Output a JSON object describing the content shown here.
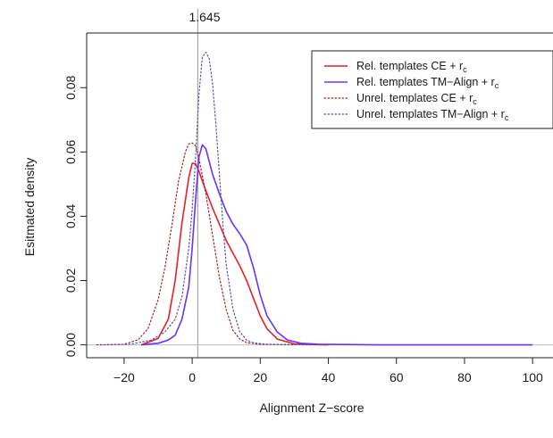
{
  "chart_data": {
    "type": "line",
    "title": "",
    "xlabel": "Alignment Z−score",
    "ylabel": "Esitmated density",
    "xlim": [
      -31,
      106
    ],
    "ylim": [
      -0.004,
      0.097
    ],
    "x_ticks": [
      -20,
      0,
      20,
      40,
      60,
      80,
      100
    ],
    "x_tick_labels": [
      "−20",
      "0",
      "20",
      "40",
      "60",
      "80",
      "100"
    ],
    "y_ticks": [
      0.0,
      0.02,
      0.04,
      0.06,
      0.08
    ],
    "y_tick_labels": [
      "0.00",
      "0.02",
      "0.04",
      "0.06",
      "0.08"
    ],
    "grid": false,
    "legend_position": "top-right",
    "vline": {
      "x": 1.645,
      "label": "1.645",
      "color": "#aaaaaa"
    },
    "hline": {
      "y": 0,
      "color": "#bbbbbb"
    },
    "series": [
      {
        "name": "Rel. templates CE + r",
        "name_sub": "c",
        "color": "#ee1c25",
        "dash": "solid",
        "x": [
          -15,
          -10,
          -7,
          -5,
          -3,
          -1,
          0,
          1,
          2,
          3,
          4,
          6,
          8,
          10,
          12,
          14,
          16,
          18,
          20,
          22,
          25,
          30,
          35,
          40
        ],
        "y": [
          0.0,
          0.002,
          0.008,
          0.02,
          0.038,
          0.052,
          0.0565,
          0.0563,
          0.054,
          0.051,
          0.048,
          0.0425,
          0.0375,
          0.0325,
          0.0285,
          0.0245,
          0.02,
          0.0145,
          0.009,
          0.005,
          0.0018,
          0.0003,
          0.0001,
          0.0
        ]
      },
      {
        "name": "Rel. templates TM−Align + r",
        "name_sub": "c",
        "color": "#6633ff",
        "dash": "solid",
        "x": [
          -15,
          -10,
          -7,
          -5,
          -3,
          -1,
          0,
          1,
          2,
          3,
          4,
          5,
          6,
          8,
          10,
          12,
          14,
          16,
          18,
          20,
          22,
          25,
          28,
          32,
          37,
          45,
          55,
          100
        ],
        "y": [
          0.0,
          0.0005,
          0.0015,
          0.003,
          0.008,
          0.018,
          0.03,
          0.045,
          0.0585,
          0.0622,
          0.061,
          0.057,
          0.053,
          0.047,
          0.0415,
          0.0375,
          0.0345,
          0.031,
          0.024,
          0.0155,
          0.009,
          0.004,
          0.0015,
          0.0005,
          0.0002,
          0.0001,
          0.0,
          0.0
        ]
      },
      {
        "name": "Unrel. templates CE + r",
        "name_sub": "c",
        "color": "#a31f2a",
        "dash": "dotted",
        "x": [
          -28,
          -20,
          -16,
          -13,
          -10,
          -8,
          -6,
          -4,
          -2,
          -1,
          0,
          1,
          2,
          4,
          6,
          8,
          10,
          12,
          14,
          16,
          20,
          25,
          30
        ],
        "y": [
          0.0,
          0.0002,
          0.0015,
          0.005,
          0.014,
          0.024,
          0.037,
          0.051,
          0.06,
          0.0625,
          0.0628,
          0.062,
          0.058,
          0.047,
          0.034,
          0.021,
          0.011,
          0.0045,
          0.0018,
          0.0007,
          0.0002,
          0.0001,
          0.0
        ]
      },
      {
        "name": "Unrel. templates TM−Align + r",
        "name_sub": "c",
        "color": "#5555aa",
        "dash": "dotted",
        "x": [
          -26,
          -18,
          -12,
          -8,
          -5,
          -3,
          -1,
          0,
          1,
          2,
          3,
          4,
          5,
          6,
          7,
          8,
          9,
          10,
          12,
          14,
          16,
          18,
          22,
          28,
          35
        ],
        "y": [
          0.0,
          0.0002,
          0.0015,
          0.004,
          0.008,
          0.015,
          0.03,
          0.042,
          0.058,
          0.078,
          0.0895,
          0.091,
          0.089,
          0.081,
          0.068,
          0.053,
          0.038,
          0.025,
          0.011,
          0.004,
          0.0015,
          0.0006,
          0.0002,
          0.0001,
          0.0
        ]
      }
    ]
  }
}
